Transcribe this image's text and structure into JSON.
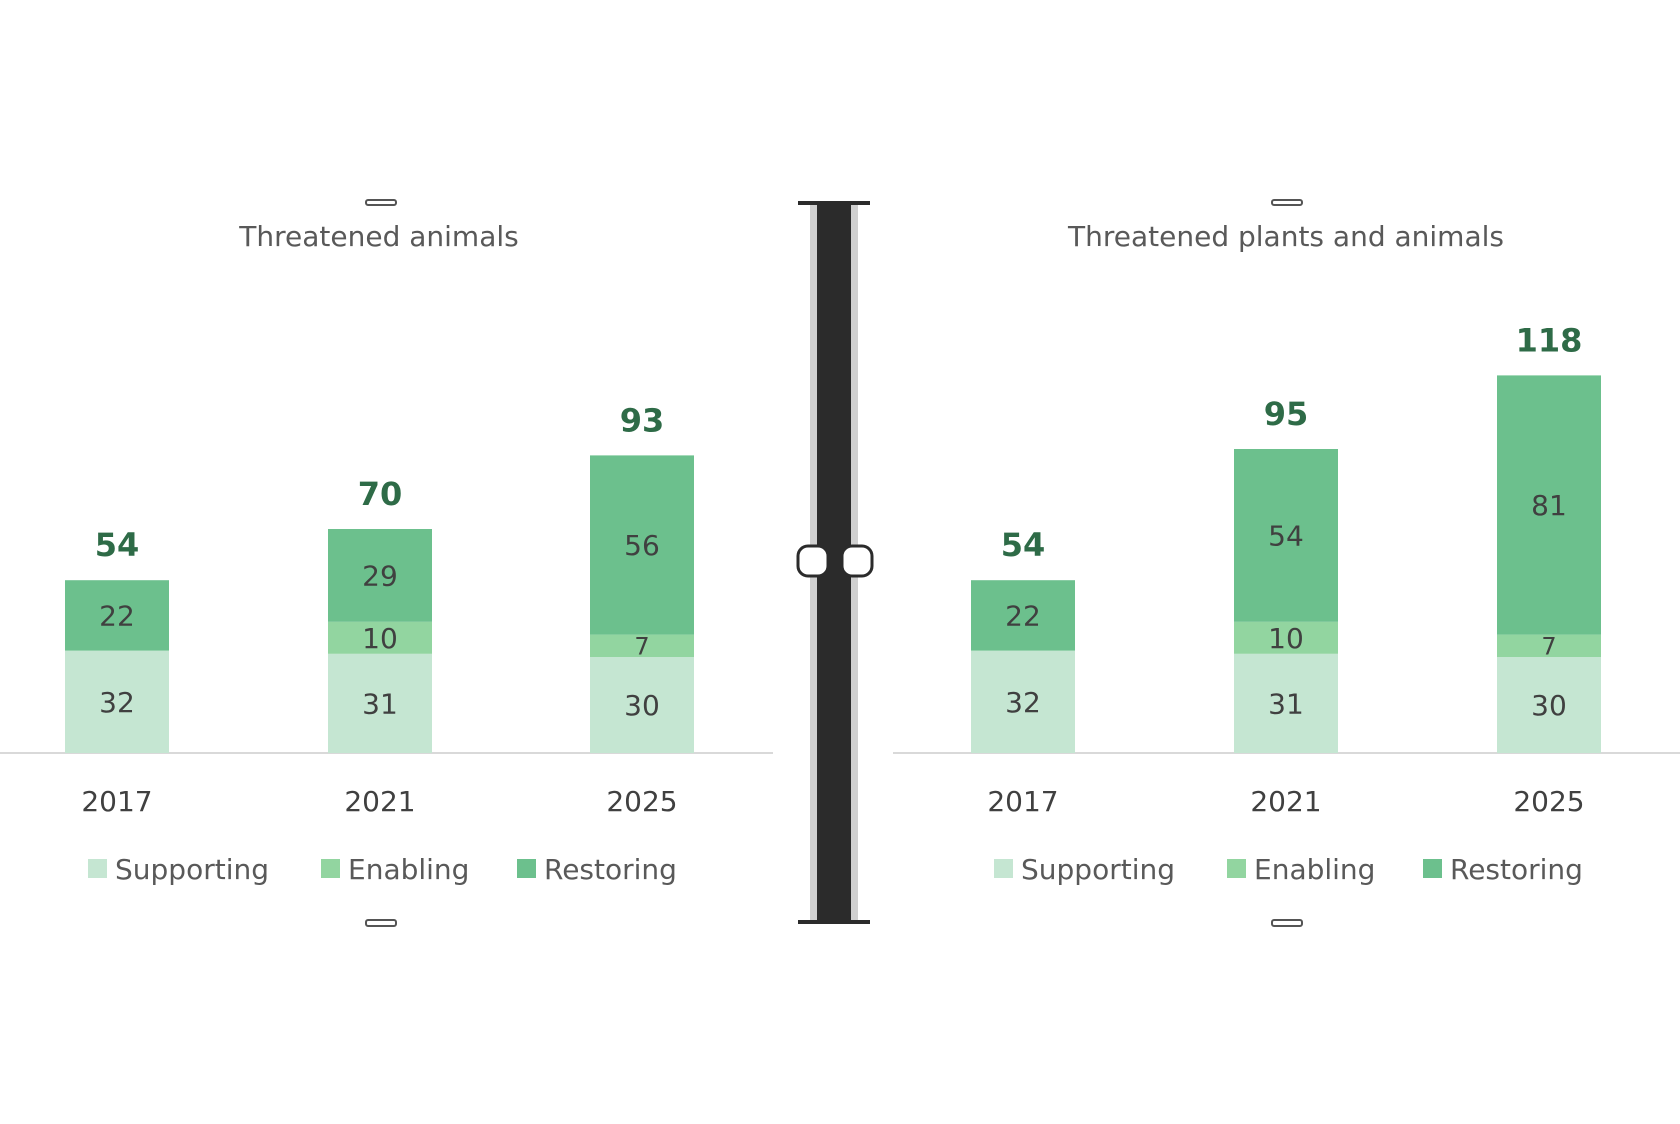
{
  "colors": {
    "supporting": "#c5e6d2",
    "enabling": "#92d5a0",
    "restoring": "#6cc08d",
    "total_label": "#2e6b47",
    "text": "#404040",
    "axis": "#d9d9d9",
    "divider": "#2b2b2b"
  },
  "chart_data": [
    {
      "type": "bar",
      "stacked": true,
      "title": "Threatened animals",
      "categories": [
        "2017",
        "2021",
        "2025"
      ],
      "series": [
        {
          "name": "Supporting",
          "values": [
            32,
            31,
            30
          ]
        },
        {
          "name": "Enabling",
          "values": [
            0,
            10,
            7
          ]
        },
        {
          "name": "Restoring",
          "values": [
            22,
            29,
            56
          ]
        }
      ],
      "totals": [
        54,
        70,
        93
      ],
      "legend": "bottom",
      "grid": false
    },
    {
      "type": "bar",
      "stacked": true,
      "title": "Threatened plants and animals",
      "categories": [
        "2017",
        "2021",
        "2025"
      ],
      "series": [
        {
          "name": "Supporting",
          "values": [
            32,
            31,
            30
          ]
        },
        {
          "name": "Enabling",
          "values": [
            0,
            10,
            7
          ]
        },
        {
          "name": "Restoring",
          "values": [
            22,
            54,
            81
          ]
        }
      ],
      "totals": [
        54,
        95,
        118
      ],
      "legend": "bottom",
      "grid": false
    }
  ]
}
